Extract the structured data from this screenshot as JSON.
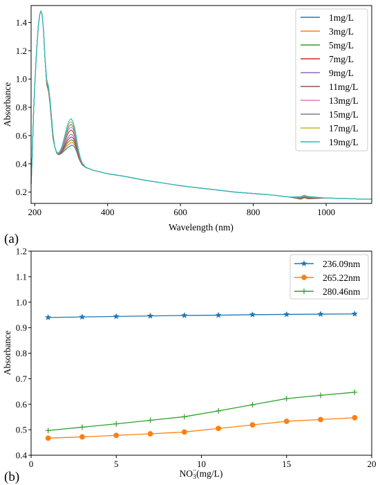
{
  "chart_data": [
    {
      "type": "line",
      "panel_label": "(a)",
      "xlabel": "Wavelength (nm)",
      "ylabel": "Absorbance",
      "xlim": [
        190,
        1125
      ],
      "ylim": [
        0.12,
        1.52
      ],
      "xticks": [
        200,
        400,
        600,
        800,
        1000
      ],
      "yticks": [
        0.2,
        0.4,
        0.6,
        0.8,
        1.0,
        1.2,
        1.4
      ],
      "xtick_labels": [
        "200",
        "400",
        "600",
        "800",
        "1000"
      ],
      "ytick_labels": [
        "0.2",
        "0.4",
        "0.6",
        "0.8",
        "1.0",
        "1.2",
        "1.4"
      ],
      "legend_position": "top-right",
      "grid": false,
      "series": [
        {
          "name": "1mg/L",
          "color": "#1f77b4",
          "peak_300": 0.53
        },
        {
          "name": "3mg/L",
          "color": "#ff7f0e",
          "peak_300": 0.55
        },
        {
          "name": "5mg/L",
          "color": "#2ca02c",
          "peak_300": 0.57
        },
        {
          "name": "7mg/L",
          "color": "#d62728",
          "peak_300": 0.59
        },
        {
          "name": "9mg/L",
          "color": "#9467bd",
          "peak_300": 0.61
        },
        {
          "name": "11mg/L",
          "color": "#8c564b",
          "peak_300": 0.64
        },
        {
          "name": "13mg/L",
          "color": "#e377c2",
          "peak_300": 0.66
        },
        {
          "name": "15mg/L",
          "color": "#7f7f7f",
          "peak_300": 0.68
        },
        {
          "name": "17mg/L",
          "color": "#bcbd22",
          "peak_300": 0.7
        },
        {
          "name": "19mg/L",
          "color": "#17becf",
          "peak_300": 0.72
        }
      ],
      "base_spectrum": {
        "x": [
          190,
          193,
          197,
          200,
          205,
          210,
          214,
          217,
          220,
          224,
          228,
          233,
          238,
          242,
          246,
          250,
          255,
          260,
          265,
          270,
          275,
          280,
          285,
          290,
          295,
          300,
          305,
          310,
          315,
          320,
          325,
          330,
          340,
          360,
          400,
          450,
          500,
          550,
          600,
          650,
          700,
          750,
          800,
          850,
          900,
          930,
          940,
          950,
          1000,
          1050,
          1100,
          1125
        ],
        "y": [
          0.26,
          0.45,
          0.78,
          0.95,
          1.2,
          1.38,
          1.46,
          1.48,
          1.46,
          1.35,
          1.15,
          0.98,
          0.93,
          0.84,
          0.72,
          0.6,
          0.52,
          0.48,
          0.47,
          0.48,
          0.5,
          0.53,
          0.56,
          0.59,
          0.61,
          0.62,
          0.61,
          0.58,
          0.53,
          0.47,
          0.43,
          0.4,
          0.375,
          0.355,
          0.33,
          0.31,
          0.285,
          0.265,
          0.245,
          0.23,
          0.215,
          0.2,
          0.19,
          0.18,
          0.165,
          0.16,
          0.17,
          0.162,
          0.158,
          0.155,
          0.15,
          0.15
        ]
      }
    },
    {
      "type": "line",
      "panel_label": "(b)",
      "xlabel": "NO3⁻(mg/L)",
      "xlabel_main": "NO",
      "xlabel_sub": "3",
      "xlabel_sup": "−",
      "xlabel_rest": "(mg/L)",
      "ylabel": "Absorbance",
      "xlim": [
        0,
        20
      ],
      "ylim": [
        0.4,
        1.2
      ],
      "xticks": [
        0,
        5,
        10,
        15,
        20
      ],
      "yticks": [
        0.4,
        0.5,
        0.6,
        0.7,
        0.8,
        0.9,
        1.0,
        1.1,
        1.2
      ],
      "xtick_labels": [
        "0",
        "5",
        "10",
        "15",
        "20"
      ],
      "ytick_labels": [
        "0.4",
        "0.5",
        "0.6",
        "0.7",
        "0.8",
        "0.9",
        "1.0",
        "1.1",
        "1.2"
      ],
      "legend_position": "top-right",
      "grid": false,
      "x": [
        1,
        3,
        5,
        7,
        9,
        11,
        13,
        15,
        17,
        19
      ],
      "series": [
        {
          "name": "236.09nm",
          "color": "#1f77b4",
          "marker": "star",
          "values": [
            0.94,
            0.942,
            0.944,
            0.946,
            0.948,
            0.949,
            0.951,
            0.952,
            0.953,
            0.954
          ]
        },
        {
          "name": "265.22nm",
          "color": "#ff7f0e",
          "marker": "circle",
          "values": [
            0.467,
            0.472,
            0.478,
            0.484,
            0.491,
            0.505,
            0.519,
            0.533,
            0.54,
            0.547
          ]
        },
        {
          "name": "280.46nm",
          "color": "#2ca02c",
          "marker": "plus",
          "values": [
            0.497,
            0.51,
            0.523,
            0.537,
            0.551,
            0.574,
            0.598,
            0.622,
            0.635,
            0.647
          ]
        }
      ]
    }
  ]
}
